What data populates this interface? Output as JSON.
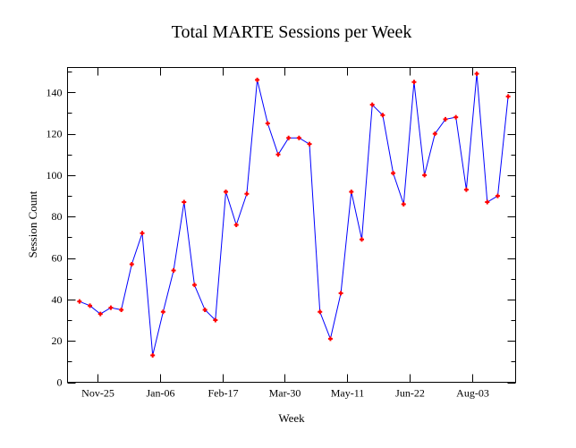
{
  "chart_data": {
    "type": "line",
    "title": "Total MARTE Sessions per Week",
    "xlabel": "Week",
    "ylabel": "Session Count",
    "ylim": [
      0,
      152
    ],
    "xlim": [
      "Nov-05",
      "Sep-01"
    ],
    "yticks": [
      0,
      20,
      40,
      60,
      80,
      100,
      120,
      140
    ],
    "xticks": [
      "Nov-25",
      "Jan-06",
      "Feb-17",
      "Mar-30",
      "May-11",
      "Jun-22",
      "Aug-03"
    ],
    "grid": false,
    "line_color": "#0000ff",
    "marker_color": "#ff0000",
    "x": [
      "Nov-13",
      "Nov-20",
      "Nov-27",
      "Dec-04",
      "Dec-11",
      "Dec-18",
      "Dec-25",
      "Jan-01",
      "Jan-08",
      "Jan-15",
      "Jan-22",
      "Jan-29",
      "Feb-05",
      "Feb-12",
      "Feb-19",
      "Feb-26",
      "Mar-05",
      "Mar-12",
      "Mar-19",
      "Mar-26",
      "Apr-02",
      "Apr-09",
      "Apr-16",
      "Apr-23",
      "Apr-30",
      "May-07",
      "May-14",
      "May-21",
      "May-28",
      "Jun-04",
      "Jun-11",
      "Jun-18",
      "Jun-25",
      "Jul-02",
      "Jul-09",
      "Jul-16",
      "Jul-23",
      "Jul-30",
      "Aug-06",
      "Aug-13",
      "Aug-20",
      "Aug-27"
    ],
    "values": [
      39,
      37,
      33,
      36,
      35,
      57,
      72,
      13,
      34,
      54,
      87,
      47,
      35,
      30,
      92,
      76,
      91,
      146,
      125,
      110,
      118,
      118,
      115,
      34,
      21,
      43,
      92,
      69,
      134,
      129,
      101,
      86,
      145,
      100,
      120,
      127,
      128,
      93,
      149,
      87,
      90,
      138
    ]
  }
}
